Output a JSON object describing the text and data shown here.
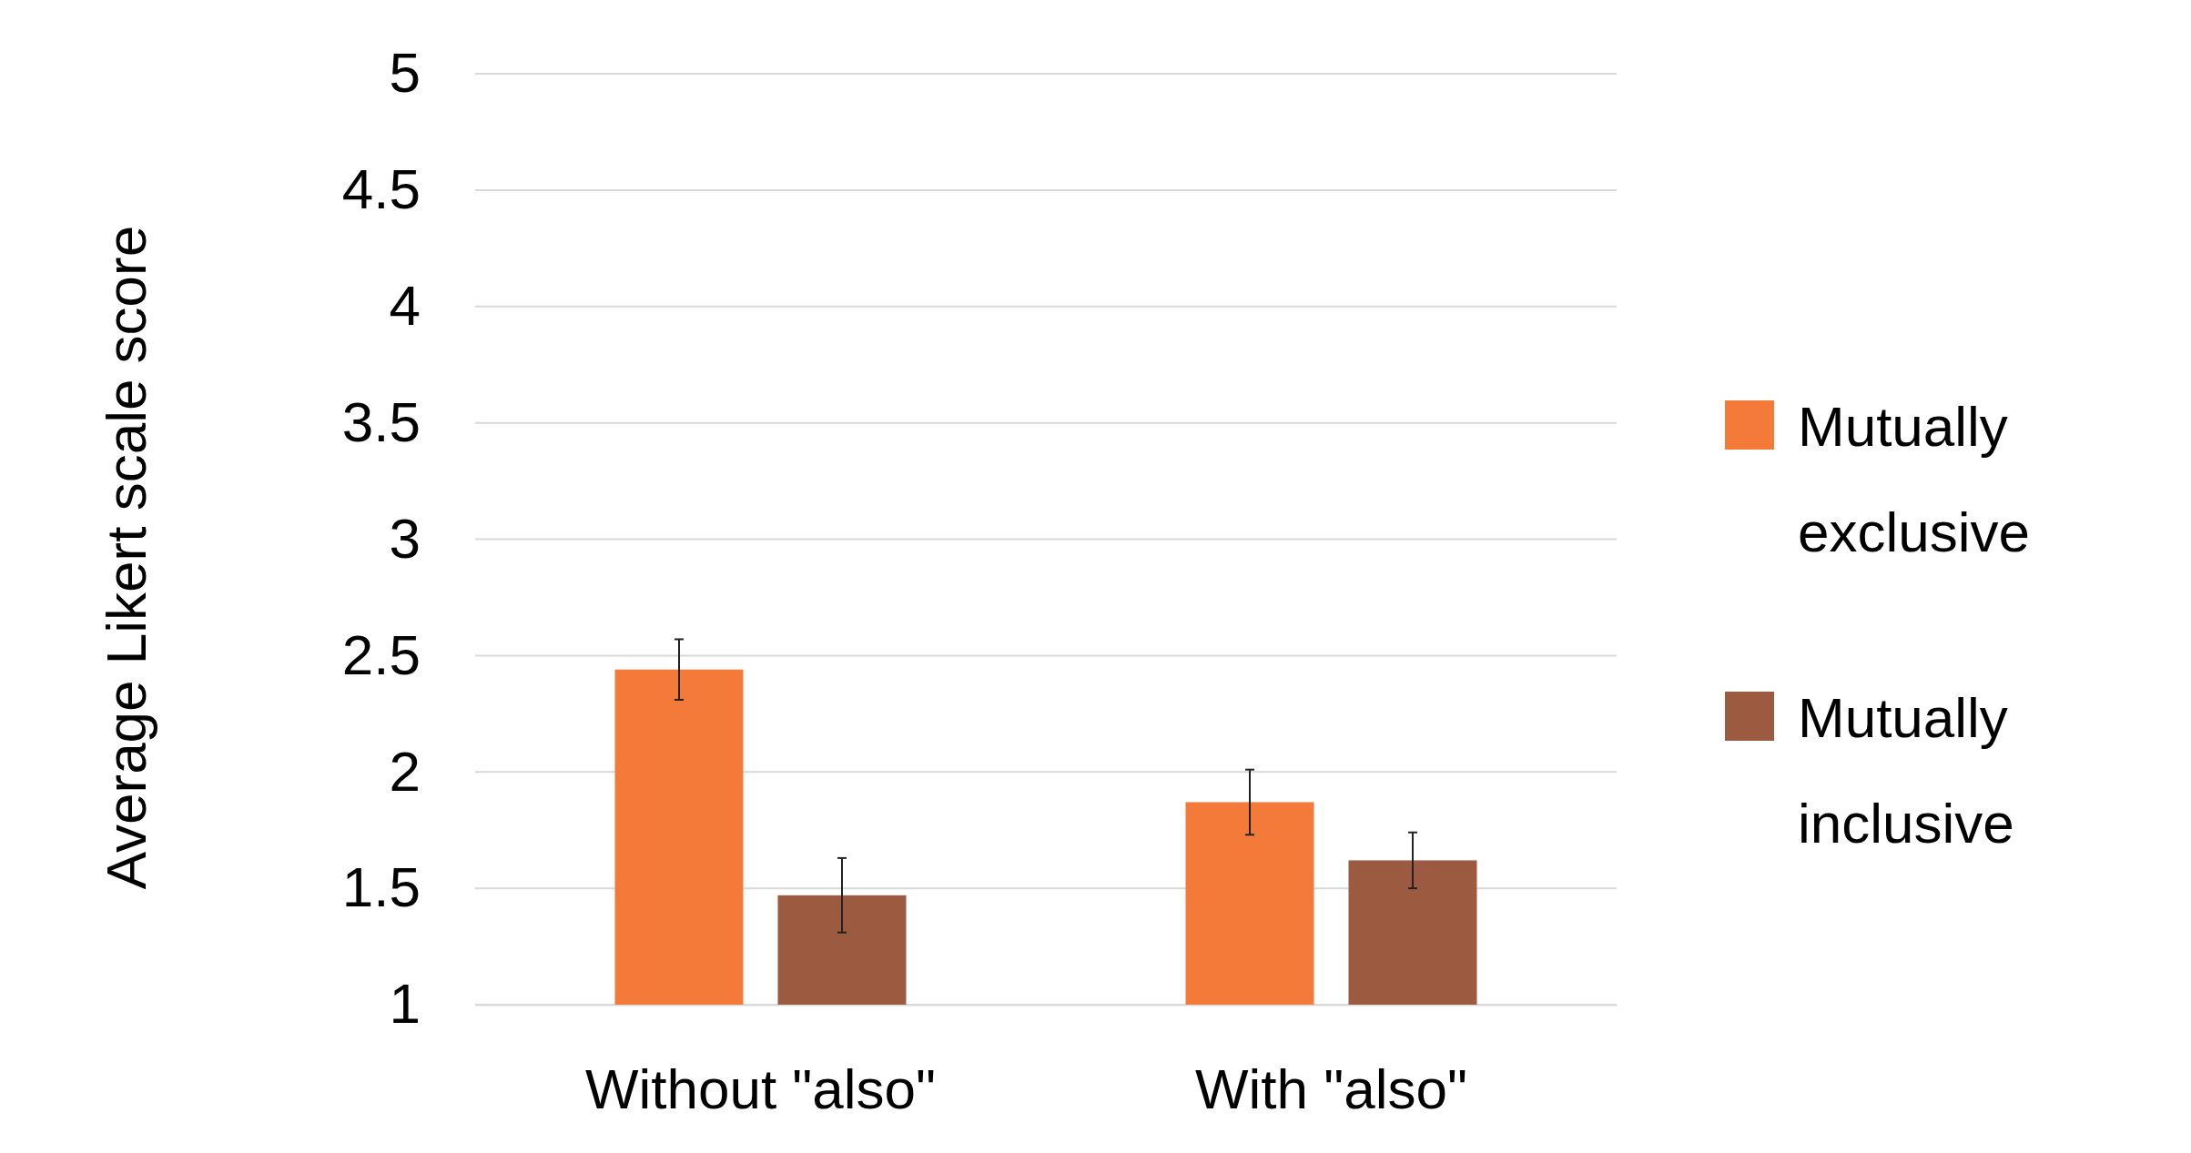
{
  "chart_data": {
    "type": "bar",
    "ylabel": "Average Likert scale score",
    "categories": [
      "Without \"also\"",
      "With \"also\""
    ],
    "series": [
      {
        "name": "Mutually exclusive",
        "color": "#f47a3a",
        "values": [
          2.44,
          1.87
        ],
        "errors": [
          0.13,
          0.14
        ]
      },
      {
        "name": "Mutually inclusive",
        "color": "#9c5b40",
        "values": [
          1.47,
          1.62
        ],
        "errors": [
          0.16,
          0.12
        ]
      }
    ],
    "ylim": [
      1,
      5
    ],
    "yticks": [
      1,
      1.5,
      2,
      2.5,
      3,
      3.5,
      4,
      4.5,
      5
    ],
    "grid": "y",
    "legend": "right"
  }
}
